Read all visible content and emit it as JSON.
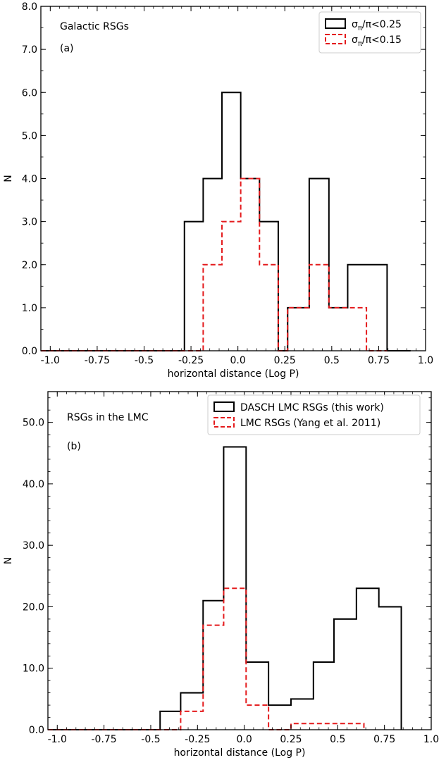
{
  "chart_data": [
    {
      "type": "histogram",
      "annotations": [
        "Galactic RSGs",
        "(a)"
      ],
      "xlabel": "horizontal distance (Log P)",
      "ylabel": "N",
      "xlim": [
        -1.05,
        1.0
      ],
      "ylim": [
        0,
        8
      ],
      "x_ticks": [
        -1.0,
        -0.75,
        -0.5,
        -0.25,
        0.0,
        0.25,
        0.5,
        0.75,
        1.0
      ],
      "x_tick_labels": [
        "-1.0",
        "-0.75",
        "-0.5",
        "-0.25",
        "0.0",
        "0.25",
        "0.5",
        "0.75",
        "1.0"
      ],
      "y_ticks": [
        0,
        1,
        2,
        3,
        4,
        5,
        6,
        7,
        8
      ],
      "y_tick_labels": [
        "0.0",
        "1.0",
        "2.0",
        "3.0",
        "4.0",
        "5.0",
        "6.0",
        "7.0",
        "8.0"
      ],
      "legend_position": "top-right",
      "series": [
        {
          "name": "σπ/π<0.25",
          "legend_base": "σ",
          "legend_sub": "π",
          "legend_rest": "/π<0.25",
          "color": "#000000",
          "dashed": false,
          "edges": [
            -1.05,
            -0.285,
            -0.185,
            -0.085,
            0.015,
            0.115,
            0.215,
            0.265,
            0.38,
            0.485,
            0.585,
            0.685,
            0.795,
            0.92
          ],
          "counts": [
            0,
            3,
            4,
            6,
            4,
            3,
            0,
            1,
            4,
            1,
            2,
            2,
            0
          ]
        },
        {
          "name": "σπ/π<0.15",
          "legend_base": "σ",
          "legend_sub": "π",
          "legend_rest": "/π<0.15",
          "color": "#e41a1c",
          "dashed": true,
          "edges": [
            -1.05,
            -0.185,
            -0.085,
            0.015,
            0.115,
            0.215,
            0.265,
            0.38,
            0.485,
            0.585,
            0.685,
            0.795
          ],
          "counts": [
            0,
            2,
            3,
            4,
            2,
            0,
            1,
            2,
            1,
            1,
            0
          ]
        }
      ]
    },
    {
      "type": "histogram",
      "annotations": [
        "RSGs in the LMC",
        "(b)"
      ],
      "xlabel": "horizontal distance (Log P)",
      "ylabel": "N",
      "xlim": [
        -1.05,
        1.0
      ],
      "ylim": [
        0,
        55
      ],
      "x_ticks": [
        -1.0,
        -0.75,
        -0.5,
        -0.25,
        0.0,
        0.25,
        0.5,
        0.75,
        1.0
      ],
      "x_tick_labels": [
        "-1.0",
        "-0.75",
        "-0.5",
        "-0.25",
        "0.0",
        "0.25",
        "0.5",
        "0.75",
        "1.0"
      ],
      "y_ticks": [
        0,
        10,
        20,
        30,
        40,
        50
      ],
      "y_tick_labels": [
        "0.0",
        "10.0",
        "20.0",
        "30.0",
        "40.0",
        "50.0"
      ],
      "legend_position": "top-right",
      "series": [
        {
          "name": "DASCH LMC RSGs (this work)",
          "color": "#000000",
          "dashed": false,
          "edges": [
            -1.05,
            -0.45,
            -0.34,
            -0.22,
            -0.11,
            0.01,
            0.13,
            0.25,
            0.37,
            0.48,
            0.6,
            0.72,
            0.84
          ],
          "counts": [
            0,
            3,
            6,
            21,
            46,
            11,
            4,
            5,
            11,
            18,
            23,
            20
          ]
        },
        {
          "name": "LMC RSGs (Yang et al. 2011)",
          "color": "#e41a1c",
          "dashed": true,
          "edges": [
            -1.05,
            -0.34,
            -0.22,
            -0.11,
            0.01,
            0.13,
            0.25,
            0.64
          ],
          "counts": [
            0,
            3,
            17,
            23,
            4,
            0,
            1
          ]
        }
      ]
    }
  ]
}
